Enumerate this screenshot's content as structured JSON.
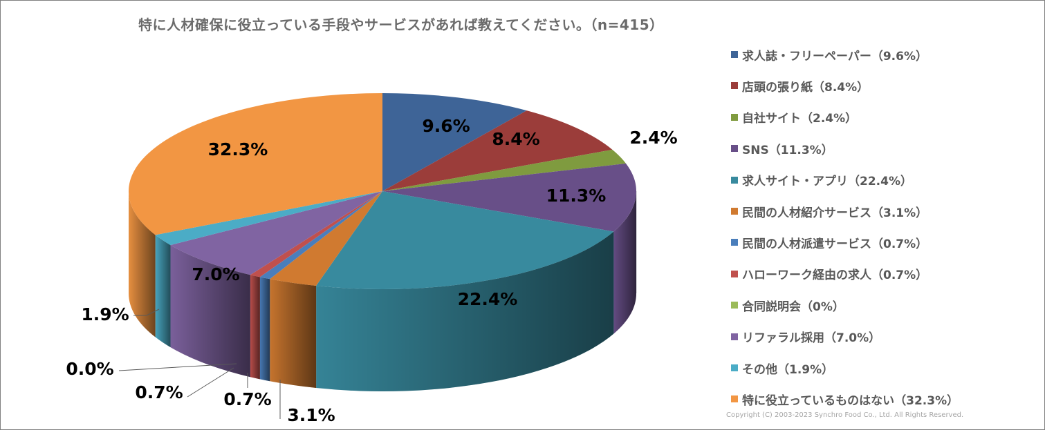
{
  "chart_data": {
    "type": "pie",
    "title": "特に人材確保に役立っている手段やサービスがあれば教えてください。（n=415）",
    "legend_position": "right",
    "slices": [
      {
        "label": "求人誌・フリーペーパー（9.6%）",
        "value": 9.6,
        "data_label": "9.6%",
        "color": "#3E6497"
      },
      {
        "label": "店頭の張り紙（8.4%）",
        "value": 8.4,
        "data_label": "8.4%",
        "color": "#9B3D3A"
      },
      {
        "label": "自社サイト（2.4%）",
        "value": 2.4,
        "data_label": "2.4%",
        "color": "#7F9B3F"
      },
      {
        "label": "SNS（11.3%）",
        "value": 11.3,
        "data_label": "11.3%",
        "color": "#684F88"
      },
      {
        "label": "求人サイト・アプリ（22.4%）",
        "value": 22.4,
        "data_label": "22.4%",
        "color": "#388A9E"
      },
      {
        "label": "民間の人材紹介サービス（3.1%）",
        "value": 3.1,
        "data_label": "3.1%",
        "color": "#D07A30"
      },
      {
        "label": "民間の人材派遣サービス（0.7%）",
        "value": 0.7,
        "data_label": "0.7%",
        "color": "#4A7EBB"
      },
      {
        "label": "ハローワーク経由の求人（0.7%）",
        "value": 0.7,
        "data_label": "0.7%",
        "color": "#C0504D"
      },
      {
        "label": "合同説明会（0%）",
        "value": 0.0,
        "data_label": "0.0%",
        "color": "#9BBB59"
      },
      {
        "label": "リファラル採用（7.0%）",
        "value": 7.0,
        "data_label": "7.0%",
        "color": "#8064A2"
      },
      {
        "label": "その他（1.9%）",
        "value": 1.9,
        "data_label": "1.9%",
        "color": "#4BACC6"
      },
      {
        "label": "特に役立っているものはない（32.3%）",
        "value": 32.3,
        "data_label": "32.3%",
        "color": "#F29643"
      }
    ]
  },
  "copyright": "Copyright (C) 2003-2023   Synchro Food Co., Ltd. All Rights Reserved."
}
